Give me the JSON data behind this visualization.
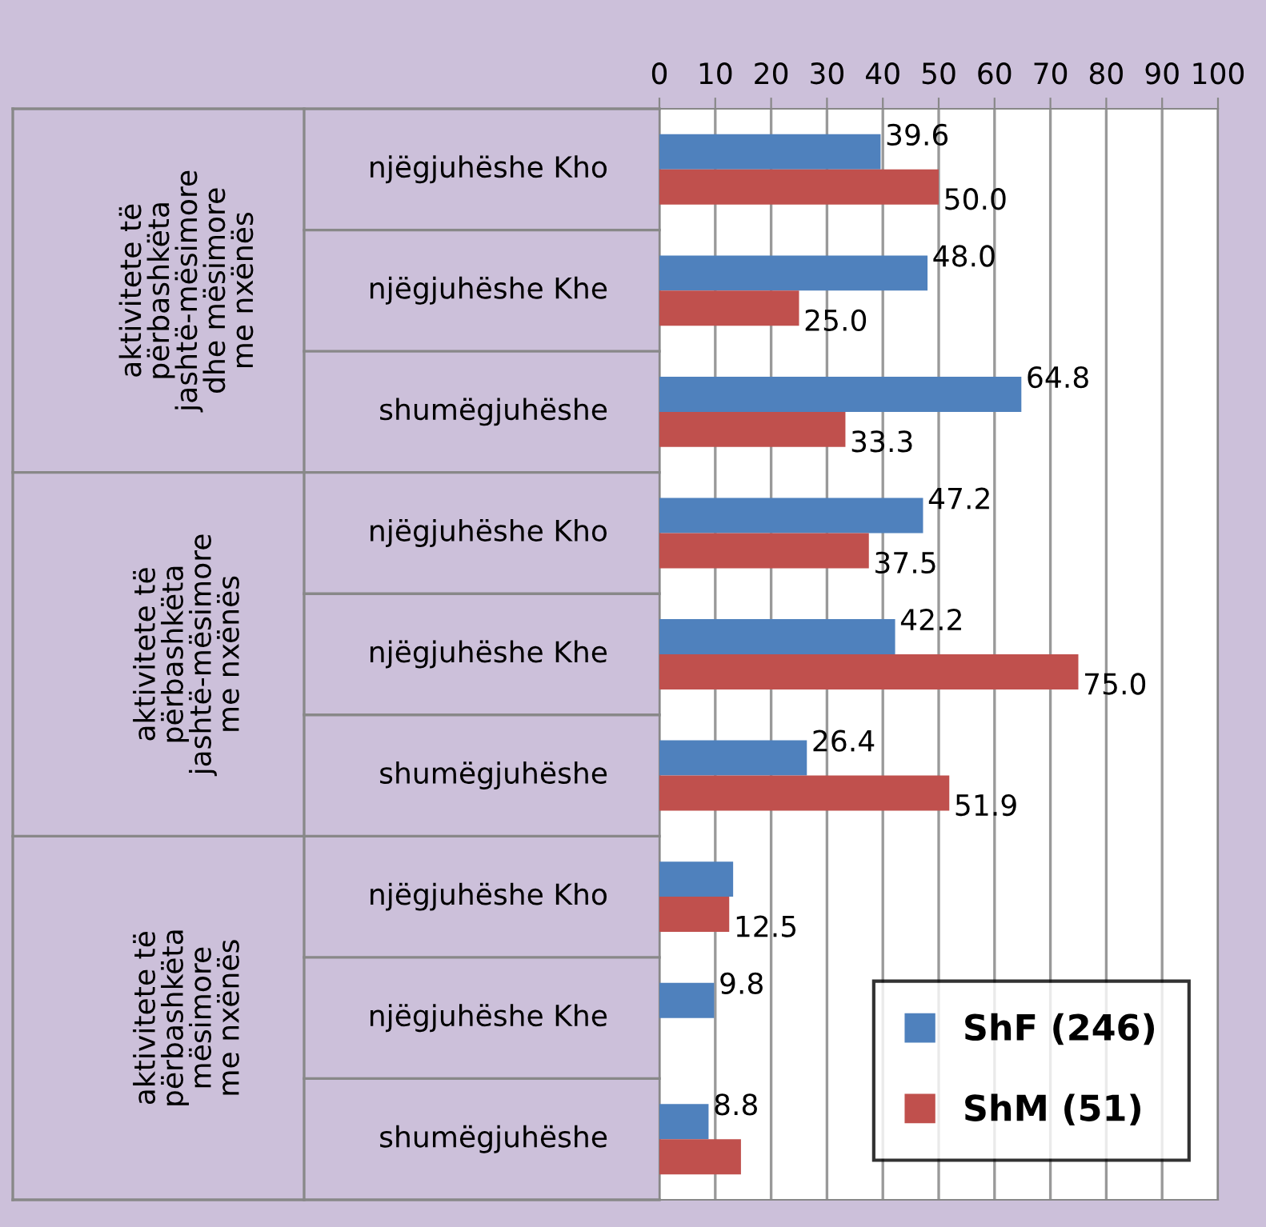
{
  "chart_data": {
    "type": "bar",
    "orientation": "horizontal",
    "categories": [
      "njëgjuhëshe Kho",
      "njëgjuhëshe Khe",
      "shumëgjuhëshe",
      "njëgjuhëshe Kho",
      "njëgjuhëshe Khe",
      "shumëgjuhëshe",
      "njëgjuhëshe Kho",
      "njëgjuhëshe Khe",
      "shumëgjuhëshe"
    ],
    "series": [
      {
        "name": "ShF (246)",
        "color": "#4f81bd",
        "values": [
          39.6,
          48.0,
          64.8,
          47.2,
          42.2,
          26.4,
          13.2,
          9.8,
          8.8
        ],
        "value_labels": [
          "39.6",
          "48.0",
          "64.8",
          "47.2",
          "42.2",
          "26.4",
          null,
          "9.8",
          "8.8"
        ]
      },
      {
        "name": "ShM (51)",
        "color": "#c0504d",
        "values": [
          50.0,
          25.0,
          33.3,
          37.5,
          75.0,
          51.9,
          12.5,
          null,
          14.6
        ],
        "value_labels": [
          "50.0",
          "25.0",
          "33.3",
          "37.5",
          "75.0",
          "51.9",
          "12.5",
          null,
          null
        ]
      }
    ],
    "annotations": [
      "aktivitete të\npërbashkëta\njashtë-mësimore\ndhe mësimore\nme nxënës",
      "aktivitete të\npërbashkëta\njashtë-mësimore\nme nxënës",
      "aktivitete të\npërbashkëta\nmësimore\nme nxënës"
    ],
    "xlim": [
      0,
      100
    ],
    "xticks": [
      0,
      10,
      20,
      30,
      40,
      50,
      60,
      70,
      80,
      90,
      100
    ],
    "grid": "x",
    "legend": "bottom right"
  }
}
